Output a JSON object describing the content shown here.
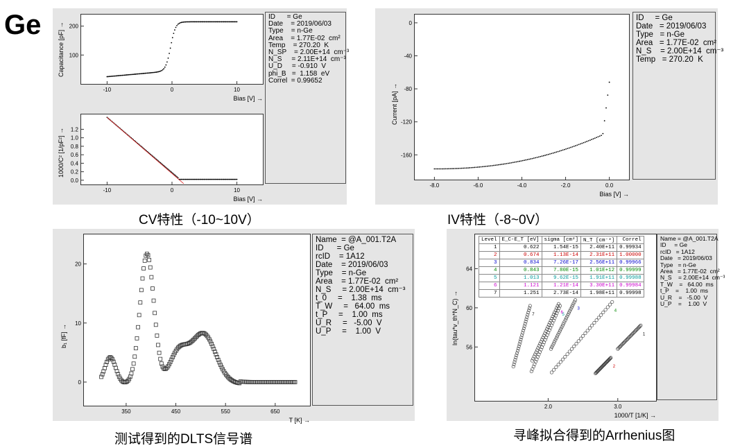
{
  "title": "Ge",
  "captions": {
    "cv": "CV特性（-10~10V）",
    "iv": "IV特性（-8~0V）",
    "dlts": "测试得到的DLTS信号谱",
    "arr": "寻峰拟合得到的Arrhenius图"
  },
  "cv_info": [
    "ID      = Ge",
    "Date    = 2019/06/03",
    "Type    = n-Ge",
    "Area    = 1.77E-02  cm²",
    "Temp    = 270.20  K",
    "N_SP    = 2.00E+14  cm⁻³",
    "N_S     = 2.11E+14  cm⁻³",
    "U_D     = -0.910  V",
    "phi_B   =  1.158  eV",
    "Correl  = 0.99652"
  ],
  "iv_info": [
    "ID     = Ge",
    "Date   = 2019/06/03",
    "Type   = n-Ge",
    "Area   = 1.77E-02  cm²",
    "N_S    = 2.00E+14  cm⁻³",
    "Temp   = 270.20  K"
  ],
  "dlts_info": [
    "Name  = @A_001.T2A",
    "ID      = Ge",
    "rcID    = 1A12",
    "Date    = 2019/06/03",
    "Type    = n-Ge",
    "Area    = 1.77E-02  cm²",
    "N_S     = 2.00E+14  cm⁻³",
    "t_0     =    1.38  ms",
    "T_W     =   64.00  ms",
    "t_P     =    1.00  ms",
    "U_R     =   -5.00  V",
    "U_P     =    1.00  V"
  ],
  "arr_info": [
    "Name = @A_001.T2A",
    "ID     = Ge",
    "rcID   = 1A12",
    "Date   = 2019/06/03",
    "Type   = n-Ge",
    "Area   = 1.77E-02  cm²",
    "N_S    = 2.00E+14  cm⁻³",
    "T_W    =   64.00  ms",
    "t_P    =    1.00  ms",
    "U_R    =   -5.00  V",
    "U_P    =    1.00  V"
  ],
  "arr_table": {
    "headers": [
      "Level",
      "E_C-E_T [eV]",
      "sigma [cm²]",
      "N_T [cm⁻³]",
      "Correl"
    ],
    "rows": [
      [
        "1",
        "0.622",
        "1.54E-15",
        "2.40E+11",
        "0.99934"
      ],
      [
        "2",
        "0.674",
        "1.13E-14",
        "2.31E+11",
        "1.00000"
      ],
      [
        "3",
        "0.834",
        "7.26E-17",
        "2.56E+11",
        "0.99966"
      ],
      [
        "4",
        "0.843",
        "7.80E-15",
        "1.01E+12",
        "0.99999"
      ],
      [
        "5",
        "1.013",
        "9.62E-15",
        "1.91E+11",
        "0.99988"
      ],
      [
        "6",
        "1.121",
        "1.21E-14",
        "3.30E+11",
        "0.99984"
      ],
      [
        "7",
        "1.251",
        "2.73E-14",
        "1.98E+11",
        "0.99998"
      ]
    ],
    "row_colors": [
      "#000000",
      "#cc0000",
      "#0000cc",
      "#008800",
      "#009999",
      "#cc00cc",
      "#000000"
    ]
  },
  "chart_data": [
    {
      "type": "scatter",
      "id": "cv",
      "xlabel": "Bias [V] →",
      "ylabel": "Capacitance [pF] →",
      "xlim": [
        -14,
        14
      ],
      "ylim": [
        0,
        240
      ],
      "xticks": [
        -10,
        0,
        10
      ],
      "yticks": [
        100,
        200
      ],
      "xtick_labels": [
        "-10",
        "0",
        "10"
      ],
      "ytick_labels": [
        "100",
        "200"
      ],
      "curve": {
        "kind": "cv",
        "x_start": -10,
        "x_end": 10,
        "n": 120
      }
    },
    {
      "type": "scatter",
      "id": "cv2",
      "xlabel": "Bias [V] →",
      "ylabel": "1000/C² [1/pF²] →",
      "xlim": [
        -14,
        14
      ],
      "ylim": [
        -0.1,
        1.55
      ],
      "xticks": [
        -10,
        0,
        10
      ],
      "yticks": [
        0.0,
        0.2,
        0.4,
        0.6,
        0.8,
        1.0,
        1.2
      ],
      "xtick_labels": [
        "-10",
        "0",
        "10"
      ],
      "ytick_labels": [
        "0.0",
        "0.2",
        "0.4",
        "0.6",
        "0.8",
        "1.0",
        "1.2"
      ],
      "curve": {
        "kind": "cv2",
        "x_start": -10,
        "x_end": 10,
        "n": 120
      },
      "fit_line": {
        "x": [
          -10,
          1.8
        ],
        "y": [
          1.48,
          -0.08
        ],
        "color": "#dd2222"
      }
    },
    {
      "type": "scatter",
      "id": "iv",
      "xlabel": "Bias [V] →",
      "ylabel": "Current [pA] →",
      "xlim": [
        -8.9,
        0.9
      ],
      "ylim": [
        -190,
        10
      ],
      "xticks": [
        -8,
        -6,
        -4,
        -2,
        0
      ],
      "yticks": [
        0,
        -40,
        -80,
        -120,
        -160
      ],
      "xtick_labels": [
        "-8.0",
        "-6.0",
        "-4.0",
        "-2.0",
        "0.0"
      ],
      "ytick_labels": [
        "0",
        "-40",
        "-80",
        "-120",
        "-160"
      ],
      "curve": {
        "kind": "iv",
        "x_start": -8,
        "x_end": 0,
        "n": 110
      }
    },
    {
      "type": "scatter",
      "id": "dlts",
      "xlabel": "T [K] →",
      "ylabel": "b₁ [fF] →",
      "xlim": [
        265,
        720
      ],
      "ylim": [
        -4,
        25
      ],
      "xticks": [
        350,
        450,
        550,
        650
      ],
      "yticks": [
        0,
        10,
        20
      ],
      "xtick_labels": [
        "350",
        "450",
        "550",
        "650"
      ],
      "ytick_labels": [
        "0",
        "10",
        "20"
      ],
      "curve": {
        "kind": "dlts",
        "x_start": 300,
        "x_end": 690,
        "n": 175
      },
      "peaks": [
        {
          "T": 318,
          "b1": 4.5
        },
        {
          "T": 392,
          "b1": 22
        },
        {
          "T": 455,
          "b1": 5
        },
        {
          "T": 505,
          "b1": 8.5
        }
      ]
    },
    {
      "type": "scatter",
      "id": "arr",
      "xlabel": "1000/T [1/K] →",
      "ylabel": "ln(tau*v_th*N_C) →",
      "xlim": [
        0.95,
        3.55
      ],
      "ylim": [
        50.5,
        67.5
      ],
      "xticks": [
        2.0,
        3.0
      ],
      "yticks": [
        56,
        60,
        64
      ],
      "xtick_labels": [
        "2.0",
        "3.0"
      ],
      "ytick_labels": [
        "56",
        "60",
        "64"
      ],
      "lines": [
        {
          "level": "1",
          "x": [
            3.0,
            3.33
          ],
          "y": [
            55.8,
            58.2
          ],
          "color": "#000000"
        },
        {
          "level": "2",
          "x": [
            2.68,
            2.9
          ],
          "y": [
            53.3,
            54.9
          ],
          "color": "#cc0000"
        },
        {
          "level": "3",
          "x": [
            2.04,
            2.39
          ],
          "y": [
            55.8,
            60.8
          ],
          "color": "#0000cc"
        },
        {
          "level": "4",
          "x": [
            2.05,
            2.92
          ],
          "y": [
            53.4,
            60.6
          ],
          "color": "#008800"
        },
        {
          "level": "5",
          "x": [
            1.76,
            2.17
          ],
          "y": [
            53.5,
            60.2
          ],
          "color": "#009999"
        },
        {
          "level": "6",
          "x": [
            1.77,
            2.15
          ],
          "y": [
            54.6,
            60.4
          ],
          "color": "#cc00cc"
        },
        {
          "level": "7",
          "x": [
            1.5,
            1.74
          ],
          "y": [
            54.0,
            60.2
          ],
          "color": "#000000"
        }
      ]
    }
  ]
}
